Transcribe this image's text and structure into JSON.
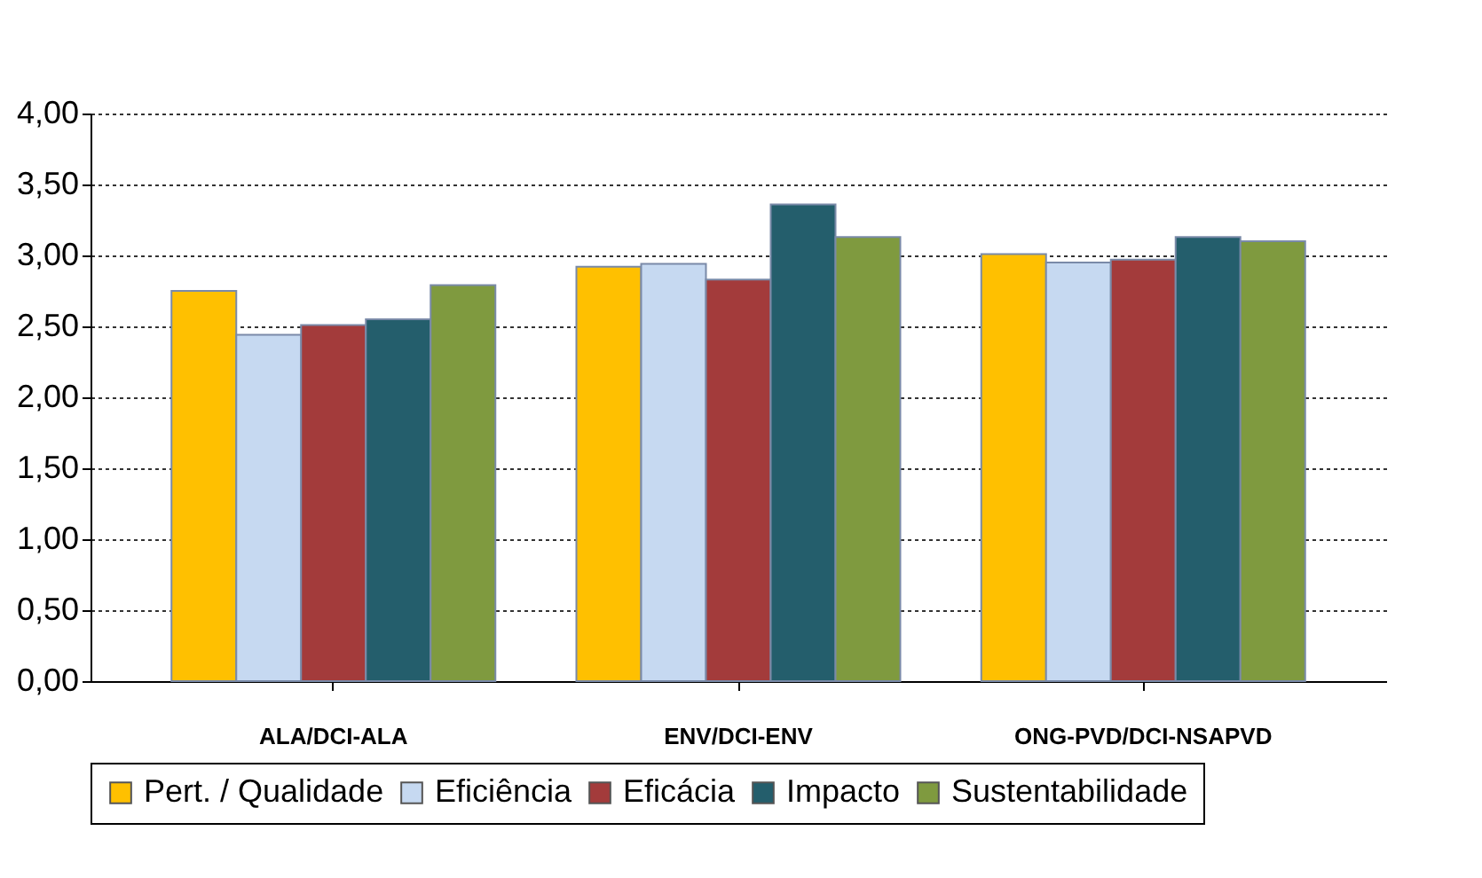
{
  "chart_data": {
    "type": "bar",
    "categories": [
      "ALA/DCI-ALA",
      "ENV/DCI-ENV",
      "ONG-PVD/DCI-NSAPVD"
    ],
    "series": [
      {
        "name": "Pert. / Qualidade",
        "color": "#ffc000",
        "values": [
          2.75,
          2.92,
          3.01
        ]
      },
      {
        "name": "Eficiência",
        "color": "#c6d9f1",
        "values": [
          2.44,
          2.94,
          2.95
        ]
      },
      {
        "name": "Eficácia",
        "color": "#a33b3b",
        "values": [
          2.51,
          2.83,
          2.97
        ]
      },
      {
        "name": "Impacto",
        "color": "#245e6c",
        "values": [
          2.55,
          3.36,
          3.13
        ]
      },
      {
        "name": "Sustentabilidade",
        "color": "#7f9a3f",
        "values": [
          2.79,
          3.13,
          3.1
        ]
      }
    ],
    "ylim": [
      0,
      4
    ],
    "yticks": [
      {
        "value": 0,
        "label": "0,00"
      },
      {
        "value": 0.5,
        "label": "0,50"
      },
      {
        "value": 1,
        "label": "1,00"
      },
      {
        "value": 1.5,
        "label": "1,50"
      },
      {
        "value": 2,
        "label": "2,00"
      },
      {
        "value": 2.5,
        "label": "2,50"
      },
      {
        "value": 3,
        "label": "3,00"
      },
      {
        "value": 3.5,
        "label": "3,50"
      },
      {
        "value": 4,
        "label": "4,00"
      }
    ],
    "grid": "y",
    "legend": "bottom"
  }
}
